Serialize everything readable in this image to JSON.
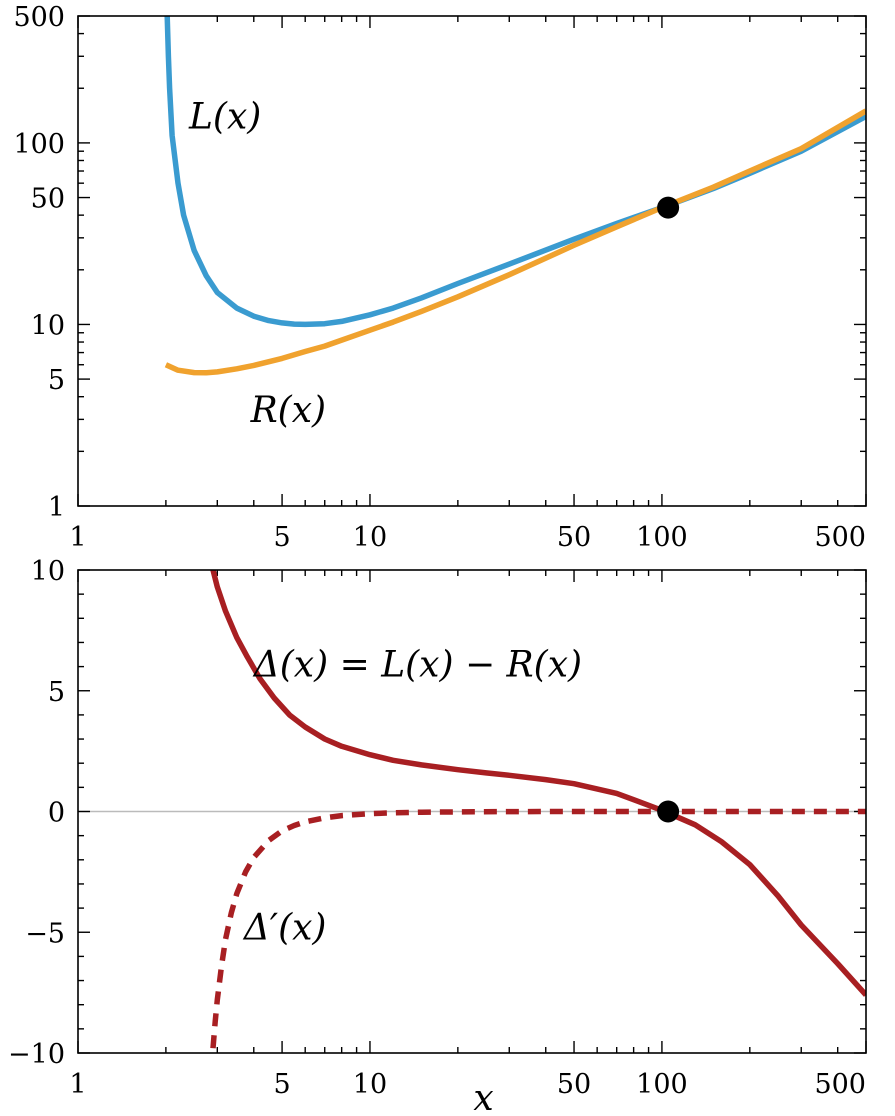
{
  "chart_data": [
    {
      "type": "line",
      "xscale": "log",
      "yscale": "log",
      "xlim": [
        1,
        500
      ],
      "ylim": [
        1,
        500
      ],
      "xticks": [
        1,
        5,
        10,
        50,
        100,
        500
      ],
      "xtick_labels": [
        "1",
        "5",
        "10",
        "50",
        "100",
        "500"
      ],
      "yticks": [
        1,
        5,
        10,
        50,
        100,
        500
      ],
      "ytick_labels": [
        "1",
        "5",
        "10",
        "50",
        "100",
        "500"
      ],
      "grid": false,
      "series": [
        {
          "name": "L(x)",
          "color": "#3a9bd0",
          "style": "solid",
          "x": [
            2.02,
            2.04,
            2.06,
            2.1,
            2.2,
            2.3,
            2.5,
            2.75,
            3,
            3.5,
            4,
            4.5,
            5,
            5.5,
            6,
            7,
            8,
            10,
            12,
            15,
            20,
            30,
            50,
            70,
            100,
            150,
            200,
            300,
            500
          ],
          "y": [
            500,
            300,
            200,
            110,
            60,
            40,
            25.5,
            18.5,
            15,
            12.3,
            11.1,
            10.5,
            10.2,
            10.05,
            10.0,
            10.1,
            10.4,
            11.3,
            12.3,
            14,
            16.8,
            21.5,
            29.5,
            36,
            44,
            56,
            68,
            90,
            140
          ]
        },
        {
          "name": "R(x)",
          "color": "#f0a22e",
          "style": "solid",
          "x": [
            2,
            2.2,
            2.5,
            2.75,
            3,
            3.5,
            4,
            5,
            6,
            7,
            8,
            10,
            12,
            15,
            20,
            30,
            50,
            70,
            100,
            150,
            200,
            300,
            500
          ],
          "y": [
            6.0,
            5.6,
            5.43,
            5.42,
            5.48,
            5.7,
            5.95,
            6.5,
            7.1,
            7.6,
            8.2,
            9.3,
            10.3,
            11.8,
            14.2,
            18.8,
            27.3,
            34.5,
            44,
            57,
            70,
            93,
            150
          ]
        }
      ],
      "annotations": [
        {
          "text": "L(x)",
          "x": 2.4,
          "y": 120
        },
        {
          "text": "R(x)",
          "x": 3.9,
          "y": 2.9
        }
      ],
      "markers": [
        {
          "x": 105,
          "y": 44,
          "color": "#000000"
        }
      ]
    },
    {
      "type": "line",
      "xscale": "log",
      "yscale": "linear",
      "xlim": [
        1,
        500
      ],
      "ylim": [
        -10,
        10
      ],
      "xlabel": "x",
      "xticks": [
        1,
        5,
        10,
        50,
        100,
        500
      ],
      "xtick_labels": [
        "1",
        "5",
        "10",
        "50",
        "100",
        "500"
      ],
      "yticks": [
        10,
        5,
        0,
        -5,
        -10
      ],
      "ytick_labels": [
        "10",
        "5",
        "0",
        "−5",
        "−10"
      ],
      "grid": false,
      "reference_line": {
        "y": 0,
        "color": "#bbbbbb"
      },
      "series": [
        {
          "name": "Δ(x) = L(x) − R(x)",
          "color": "#a81f22",
          "style": "solid",
          "x": [
            2.9,
            3,
            3.2,
            3.5,
            3.8,
            4.2,
            4.7,
            5.3,
            6,
            7,
            8,
            10,
            12,
            15,
            20,
            25,
            30,
            40,
            50,
            70,
            100,
            130,
            160,
            200,
            250,
            300,
            400,
            500
          ],
          "y": [
            10,
            9.3,
            8.3,
            7.2,
            6.4,
            5.5,
            4.7,
            4.0,
            3.5,
            3.0,
            2.7,
            2.35,
            2.12,
            1.93,
            1.73,
            1.6,
            1.5,
            1.32,
            1.15,
            0.75,
            0.05,
            -0.55,
            -1.25,
            -2.2,
            -3.5,
            -4.7,
            -6.3,
            -7.6
          ]
        },
        {
          "name": "Δ′(x)",
          "color": "#a81f22",
          "style": "dashed",
          "x": [
            2.9,
            2.95,
            3.0,
            3.1,
            3.2,
            3.35,
            3.5,
            3.75,
            4,
            4.5,
            5,
            5.5,
            6,
            7,
            8,
            10,
            12,
            15,
            20,
            30,
            50,
            100,
            200,
            500
          ],
          "y": [
            -9.8,
            -8.7,
            -7.8,
            -6.4,
            -5.3,
            -4.2,
            -3.4,
            -2.5,
            -1.9,
            -1.2,
            -0.8,
            -0.58,
            -0.43,
            -0.26,
            -0.17,
            -0.09,
            -0.055,
            -0.03,
            -0.015,
            -0.005,
            0,
            0,
            0,
            0
          ]
        }
      ],
      "annotations": [
        {
          "text": "Δ(x) = L(x) − R(x)",
          "x": 4.0,
          "y": 5.6
        },
        {
          "text": "Δ′(x)",
          "x": 3.7,
          "y": -5.3
        }
      ],
      "markers": [
        {
          "x": 105,
          "y": 0,
          "color": "#000000"
        }
      ]
    }
  ]
}
